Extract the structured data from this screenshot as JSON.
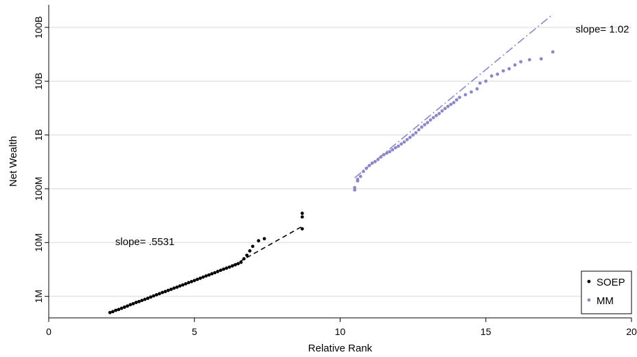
{
  "chart_data": {
    "type": "scatter",
    "title": "",
    "xlabel": "Relative Rank",
    "ylabel": "Net Wealth",
    "xlim": [
      0,
      20
    ],
    "ylim_log10": [
      5.6,
      11.42
    ],
    "y_scale": "log",
    "grid": true,
    "x_ticks": [
      {
        "value": 0,
        "label": "0"
      },
      {
        "value": 5,
        "label": "5"
      },
      {
        "value": 10,
        "label": "10"
      },
      {
        "value": 15,
        "label": "15"
      },
      {
        "value": 20,
        "label": "20"
      }
    ],
    "y_ticks": [
      {
        "value": 1000000,
        "label": "1M"
      },
      {
        "value": 10000000,
        "label": "10M"
      },
      {
        "value": 100000000,
        "label": "100M"
      },
      {
        "value": 1000000000,
        "label": "1B"
      },
      {
        "value": 10000000000,
        "label": "10B"
      },
      {
        "value": 100000000000,
        "label": "100B"
      }
    ],
    "legend_position": "bottom-right",
    "series": [
      {
        "name": "SOEP",
        "color": "#000000",
        "points": [
          [
            2.1,
            500000
          ],
          [
            2.2,
            520000
          ],
          [
            2.3,
            550000
          ],
          [
            2.4,
            570000
          ],
          [
            2.5,
            600000
          ],
          [
            2.6,
            630000
          ],
          [
            2.7,
            660000
          ],
          [
            2.8,
            700000
          ],
          [
            2.9,
            730000
          ],
          [
            3.0,
            770000
          ],
          [
            3.1,
            800000
          ],
          [
            3.2,
            840000
          ],
          [
            3.3,
            880000
          ],
          [
            3.4,
            920000
          ],
          [
            3.5,
            970000
          ],
          [
            3.6,
            1020000
          ],
          [
            3.7,
            1070000
          ],
          [
            3.8,
            1120000
          ],
          [
            3.9,
            1180000
          ],
          [
            4.0,
            1230000
          ],
          [
            4.1,
            1290000
          ],
          [
            4.2,
            1350000
          ],
          [
            4.3,
            1420000
          ],
          [
            4.4,
            1480000
          ],
          [
            4.5,
            1560000
          ],
          [
            4.6,
            1630000
          ],
          [
            4.7,
            1710000
          ],
          [
            4.8,
            1800000
          ],
          [
            4.9,
            1880000
          ],
          [
            5.0,
            1970000
          ],
          [
            5.1,
            2070000
          ],
          [
            5.2,
            2170000
          ],
          [
            5.3,
            2280000
          ],
          [
            5.4,
            2400000
          ],
          [
            5.5,
            2500000
          ],
          [
            5.6,
            2630000
          ],
          [
            5.7,
            2750000
          ],
          [
            5.8,
            2900000
          ],
          [
            5.9,
            3050000
          ],
          [
            6.0,
            3200000
          ],
          [
            6.1,
            3350000
          ],
          [
            6.2,
            3500000
          ],
          [
            6.3,
            3680000
          ],
          [
            6.4,
            3860000
          ],
          [
            6.5,
            4050000
          ],
          [
            6.6,
            4300000
          ],
          [
            6.7,
            5000000
          ],
          [
            6.8,
            5800000
          ],
          [
            6.9,
            7000000
          ],
          [
            7.0,
            8500000
          ],
          [
            7.2,
            10800000
          ],
          [
            7.4,
            11800000
          ],
          [
            8.7,
            18000000
          ],
          [
            8.7,
            30000000
          ],
          [
            8.7,
            35000000
          ]
        ]
      },
      {
        "name": "MM",
        "color": "#8b87c8",
        "points": [
          [
            10.5,
            95000000
          ],
          [
            10.5,
            105000000
          ],
          [
            10.6,
            140000000
          ],
          [
            10.6,
            150000000
          ],
          [
            10.7,
            170000000
          ],
          [
            10.8,
            210000000
          ],
          [
            10.9,
            240000000
          ],
          [
            11.0,
            270000000
          ],
          [
            11.1,
            300000000
          ],
          [
            11.2,
            320000000
          ],
          [
            11.3,
            350000000
          ],
          [
            11.4,
            390000000
          ],
          [
            11.5,
            430000000
          ],
          [
            11.6,
            460000000
          ],
          [
            11.7,
            490000000
          ],
          [
            11.8,
            530000000
          ],
          [
            11.9,
            580000000
          ],
          [
            12.0,
            620000000
          ],
          [
            12.1,
            680000000
          ],
          [
            12.2,
            740000000
          ],
          [
            12.3,
            820000000
          ],
          [
            12.4,
            900000000
          ],
          [
            12.5,
            1000000000
          ],
          [
            12.6,
            1100000000
          ],
          [
            12.7,
            1250000000
          ],
          [
            12.8,
            1400000000
          ],
          [
            12.9,
            1550000000
          ],
          [
            13.0,
            1700000000
          ],
          [
            13.1,
            1900000000
          ],
          [
            13.2,
            2100000000
          ],
          [
            13.3,
            2300000000
          ],
          [
            13.4,
            2500000000
          ],
          [
            13.5,
            2800000000
          ],
          [
            13.6,
            3100000000
          ],
          [
            13.7,
            3400000000
          ],
          [
            13.8,
            3700000000
          ],
          [
            13.9,
            4000000000
          ],
          [
            14.0,
            4500000000
          ],
          [
            14.1,
            5000000000
          ],
          [
            14.3,
            5600000000
          ],
          [
            14.5,
            6300000000
          ],
          [
            14.7,
            7200000000
          ],
          [
            14.8,
            9200000000
          ],
          [
            15.0,
            10000000000
          ],
          [
            15.2,
            12500000000
          ],
          [
            15.4,
            13500000000
          ],
          [
            15.6,
            15500000000
          ],
          [
            15.8,
            17000000000
          ],
          [
            16.0,
            20000000000
          ],
          [
            16.2,
            23000000000
          ],
          [
            16.5,
            25000000000
          ],
          [
            16.9,
            26000000000
          ],
          [
            17.3,
            35000000000
          ]
        ]
      }
    ],
    "fit_lines": [
      {
        "series": "SOEP",
        "style": "dashed",
        "color": "#000000",
        "from": [
          6.3,
          3700000
        ],
        "to": [
          8.7,
          20000000
        ]
      },
      {
        "series": "MM",
        "style": "dash-dot",
        "color": "#8b87c8",
        "from": [
          10.5,
          160000000
        ],
        "to": [
          17.3,
          175000000000
        ]
      }
    ],
    "annotations": [
      {
        "text": "slope= .5531",
        "x": 3.3,
        "y": 9000000
      },
      {
        "text": "slope= 1.02",
        "x": 19.0,
        "y": 80000000000
      }
    ]
  }
}
